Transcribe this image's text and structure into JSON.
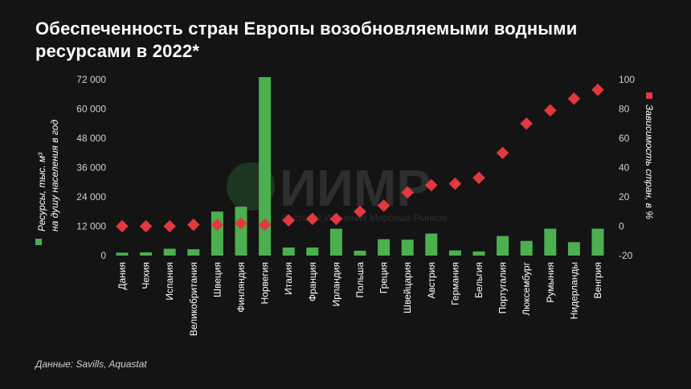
{
  "title": "Обеспеченность стран Европы возобновляемыми водными ресурсами в 2022*",
  "source": "Данные: Savills, Aquastat",
  "watermark": {
    "logo": "ИИМР",
    "subtitle": "Институт Изучения Мировых Рынков"
  },
  "colors": {
    "bar": "#4caf50",
    "marker": "#e0393e",
    "background": "#141414"
  },
  "chart_data": {
    "type": "bar",
    "categories": [
      "Дания",
      "Чехия",
      "Испания",
      "Великобритания",
      "Швеция",
      "Финляндия",
      "Норвегия",
      "Италия",
      "Франция",
      "Ирландия",
      "Польша",
      "Греция",
      "Швейцария",
      "Австрия",
      "Германия",
      "Бельгия",
      "Португалия",
      "Люксембург",
      "Румыния",
      "Нидерланды",
      "Венгрия"
    ],
    "series": [
      {
        "name": "Ресурсы, тыс. м³ на душу населения в год",
        "type": "bar",
        "axis": "left",
        "values": [
          1200,
          1300,
          2800,
          2600,
          18000,
          20000,
          73000,
          3300,
          3300,
          11000,
          2000,
          6700,
          6500,
          9000,
          2100,
          1700,
          8000,
          6000,
          11000,
          5500,
          11000
        ]
      },
      {
        "name": "Зависимость стран, в %",
        "type": "scatter",
        "axis": "right",
        "values": [
          0,
          0,
          0,
          1,
          1,
          2,
          1,
          4,
          5,
          5,
          10,
          14,
          23,
          28,
          29,
          33,
          50,
          70,
          79,
          87,
          93
        ]
      }
    ],
    "y_left": {
      "label_line1": "Ресурсы, тыс. м³",
      "label_line2": "на душу населения в год",
      "ticks": [
        "0",
        "12 000",
        "24 000",
        "36 000",
        "48 000",
        "60 000",
        "72 000"
      ],
      "range": [
        0,
        72000
      ]
    },
    "y_right": {
      "label": "Зависимость стран, в %",
      "ticks": [
        "-20",
        "0",
        "20",
        "40",
        "60",
        "80",
        "100"
      ],
      "range": [
        -20,
        100
      ]
    }
  }
}
